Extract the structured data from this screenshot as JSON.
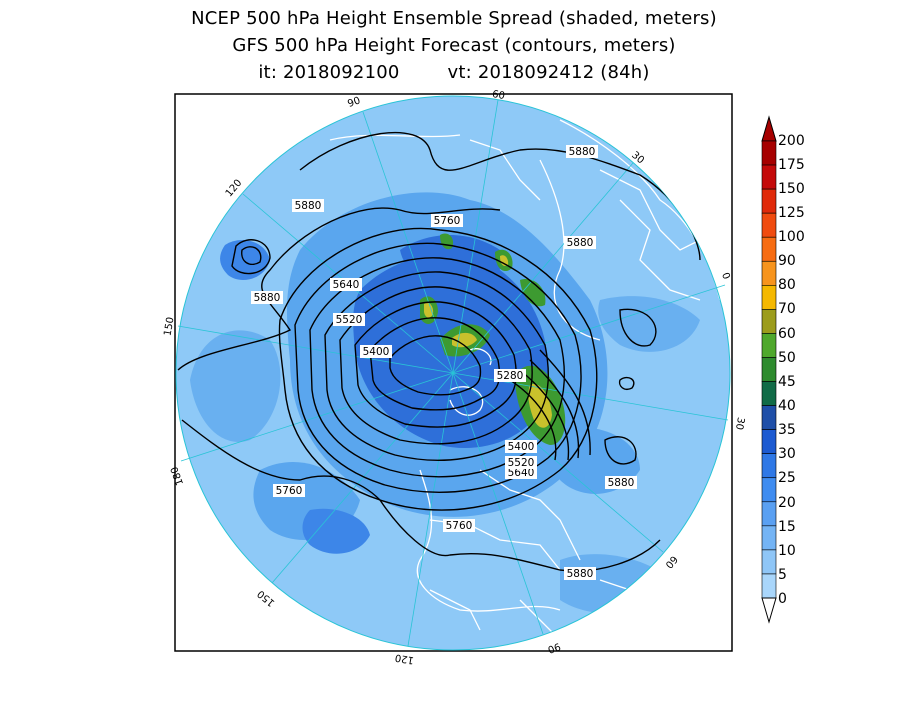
{
  "header": {
    "line1": "NCEP 500 hPa Height Ensemble Spread (shaded, meters)",
    "line2": "GFS 500 hPa Height Forecast (contours, meters)",
    "init_label": "it: 2018092100",
    "valid_label": "vt: 2018092412 (84h)"
  },
  "map": {
    "projection": "north-polar-stereographic",
    "longitude_labels": [
      "60",
      "30",
      "0",
      "30",
      "60",
      "90",
      "120",
      "150",
      "180",
      "150",
      "120",
      "90"
    ],
    "contour_labels": [
      "5880",
      "5880",
      "5880",
      "5880",
      "5880",
      "5880",
      "5760",
      "5760",
      "5760",
      "5640",
      "5640",
      "5520",
      "5520",
      "5400",
      "5400",
      "5280"
    ],
    "colors": {
      "base_shade": "#8ec9f7",
      "mid_shade": "#5aa6ee",
      "dark_shade": "#2e6fd9",
      "green_shade": "#3d9a31",
      "yellow_shade": "#c9c12c",
      "coast": "#ffffff",
      "meridian": "#29c4d6",
      "contour": "#000000"
    }
  },
  "colorbar": {
    "labels": [
      "200",
      "175",
      "150",
      "125",
      "100",
      "90",
      "80",
      "70",
      "60",
      "50",
      "45",
      "40",
      "35",
      "30",
      "25",
      "20",
      "15",
      "10",
      "5",
      "0"
    ],
    "colors": [
      "#a60000",
      "#c40a0a",
      "#e02a0a",
      "#f04b0f",
      "#f76c12",
      "#f7941d",
      "#f5b800",
      "#9c9c1c",
      "#4fa82c",
      "#2e8b2e",
      "#116b47",
      "#1f4fa8",
      "#1c5ad1",
      "#2f78e6",
      "#3f8cf0",
      "#5aa0f2",
      "#74b4f5",
      "#8fc6f7",
      "#a9d6fb"
    ]
  }
}
